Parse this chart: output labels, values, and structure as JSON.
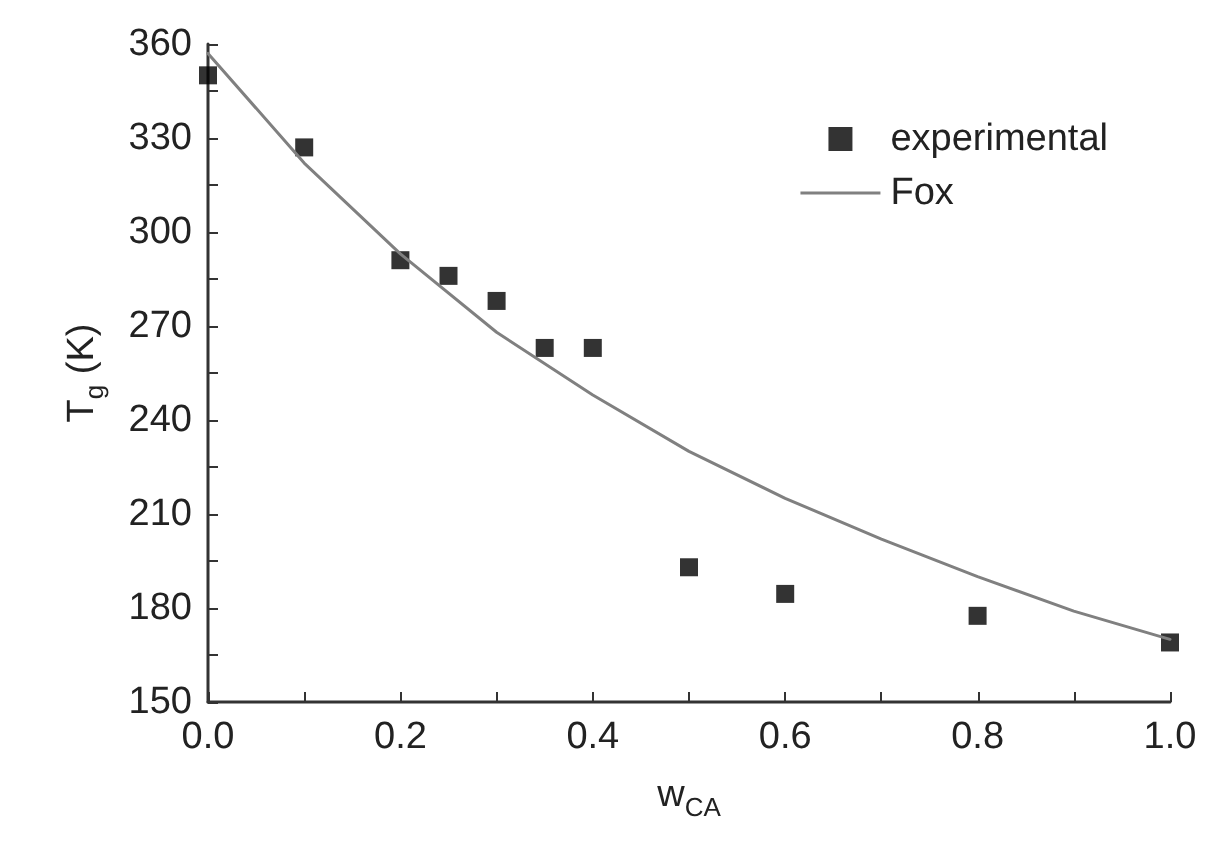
{
  "chart_data": {
    "type": "scatter",
    "xlabel": "w$_{CA}$",
    "ylabel": "T$_{g}$ (K)",
    "xlim": [
      0,
      1
    ],
    "ylim": [
      150,
      360
    ],
    "xticks": [
      {
        "value": 0,
        "label": "0.0"
      },
      {
        "value": 0.1,
        "label": null
      },
      {
        "value": 0.2,
        "label": "0.2"
      },
      {
        "value": 0.3,
        "label": null
      },
      {
        "value": 0.4,
        "label": "0.4"
      },
      {
        "value": 0.5,
        "label": null
      },
      {
        "value": 0.6,
        "label": "0.6"
      },
      {
        "value": 0.7,
        "label": null
      },
      {
        "value": 0.8,
        "label": "0.8"
      },
      {
        "value": 0.9,
        "label": null
      },
      {
        "value": 1,
        "label": "1.0"
      }
    ],
    "yticks": [
      150,
      {
        "value": 165,
        "label": null
      },
      180,
      {
        "value": 195,
        "label": null
      },
      210,
      {
        "value": 225,
        "label": null
      },
      240,
      {
        "value": 255,
        "label": null
      },
      270,
      {
        "value": 285,
        "label": null
      },
      300,
      {
        "value": 315,
        "label": null
      },
      330,
      {
        "value": 345,
        "label": null
      },
      360
    ],
    "legend": "top right",
    "grid": false,
    "series": [
      {
        "name": "experimental",
        "marker": "square",
        "color": "#000000",
        "x": [
          0,
          0.1,
          0.2,
          0.25,
          0.3,
          0.35,
          0.4,
          0.5,
          0.6,
          0.8,
          1.0
        ],
        "values": [
          350,
          327,
          291,
          286,
          278,
          263,
          263,
          193,
          184.5,
          177.5,
          169
        ]
      },
      {
        "name": "Fox",
        "type": "line",
        "marker": "none",
        "line_style": "solid",
        "color": "#808080",
        "x": [
          0,
          0.1,
          0.2,
          0.3,
          0.4,
          0.5,
          0.6,
          0.7,
          0.8,
          0.9,
          1.0
        ],
        "values": [
          357,
          322,
          293,
          268,
          248,
          230,
          215,
          202,
          190,
          179,
          170
        ]
      }
    ]
  }
}
